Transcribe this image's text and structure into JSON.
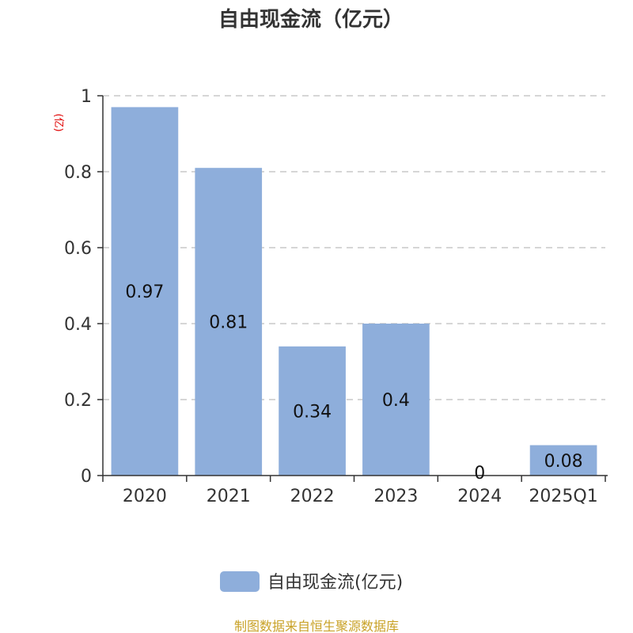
{
  "chart_data": {
    "type": "bar",
    "title": "自由现金流（亿元）",
    "ylabel": "(亿)",
    "categories": [
      "2020",
      "2021",
      "2022",
      "2023",
      "2024",
      "2025Q1"
    ],
    "series": [
      {
        "name": "自由现金流(亿元)",
        "values": [
          0.97,
          0.81,
          0.34,
          0.4,
          0,
          0.08
        ],
        "labels": [
          "0.97",
          "0.81",
          "0.34",
          "0.4",
          "0",
          "0.08"
        ]
      }
    ],
    "ylim": [
      0,
      1
    ],
    "yticks": [
      "0",
      "0.2",
      "0.4",
      "0.6",
      "0.8",
      "1"
    ],
    "grid": true,
    "legend_position": "bottom",
    "bar_color": "#8eaedb",
    "ylabel_color": "#e00000"
  },
  "source": "制图数据来自恒生聚源数据库",
  "source_color": "#c9a227"
}
